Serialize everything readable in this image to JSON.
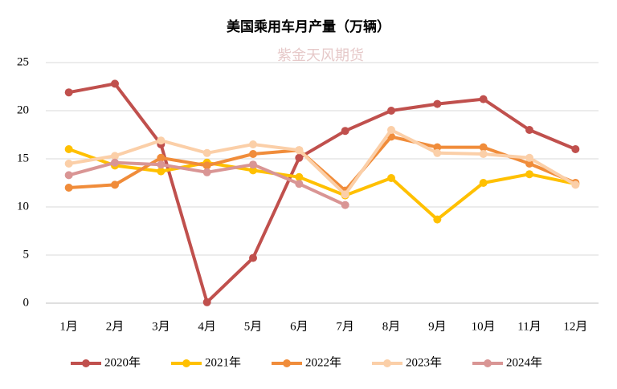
{
  "chart_data": {
    "type": "line",
    "title": "美国乘用车月产量（万辆）",
    "watermark": "紫金天风期货",
    "categories": [
      "1月",
      "2月",
      "3月",
      "4月",
      "5月",
      "6月",
      "7月",
      "8月",
      "9月",
      "10月",
      "11月",
      "12月"
    ],
    "series": [
      {
        "name": "2020年",
        "color": "#c0504d",
        "values": [
          21.9,
          22.8,
          16.5,
          0.1,
          4.7,
          15.1,
          17.9,
          20.0,
          20.7,
          21.2,
          18.0,
          16.0
        ]
      },
      {
        "name": "2021年",
        "color": "#ffc000",
        "values": [
          16.0,
          14.3,
          13.7,
          14.6,
          13.8,
          13.1,
          11.2,
          13.0,
          8.7,
          12.5,
          13.4,
          12.4
        ]
      },
      {
        "name": "2022年",
        "color": "#f08c3a",
        "values": [
          12.0,
          12.3,
          15.1,
          14.3,
          15.5,
          15.9,
          11.7,
          17.3,
          16.2,
          16.2,
          14.5,
          12.5
        ]
      },
      {
        "name": "2023年",
        "color": "#fbcfa8",
        "values": [
          14.5,
          15.3,
          16.9,
          15.6,
          16.5,
          15.9,
          11.3,
          18.0,
          15.6,
          15.5,
          15.1,
          12.3
        ]
      },
      {
        "name": "2024年",
        "color": "#d99594",
        "values": [
          13.3,
          14.6,
          14.4,
          13.6,
          14.4,
          12.4,
          10.2,
          null,
          null,
          null,
          null,
          null
        ]
      }
    ],
    "ylim": [
      0,
      25
    ],
    "yticks": [
      0,
      5,
      10,
      15,
      20,
      25
    ],
    "grid": true,
    "legend": "bottom"
  }
}
